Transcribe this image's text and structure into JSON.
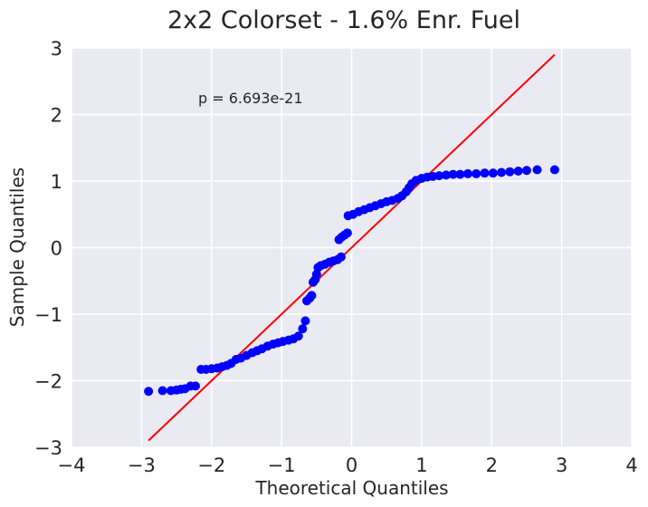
{
  "chart_data": {
    "type": "scatter",
    "title": "2x2 Colorset - 1.6% Enr. Fuel",
    "xlabel": "Theoretical Quantiles",
    "ylabel": "Sample Quantiles",
    "xlim": [
      -4,
      4
    ],
    "ylim": [
      -3,
      3
    ],
    "xticks": [
      -4,
      -3,
      -2,
      -1,
      0,
      1,
      2,
      3,
      4
    ],
    "yticks": [
      -3,
      -2,
      -1,
      0,
      1,
      2,
      3
    ],
    "xtick_labels": [
      "−4",
      "−3",
      "−2",
      "−1",
      "0",
      "1",
      "2",
      "3",
      "4"
    ],
    "ytick_labels": [
      "−3",
      "−2",
      "−1",
      "0",
      "1",
      "2",
      "3"
    ],
    "grid": true,
    "annotation": "p = 6.693e-21",
    "colors": {
      "background": "#eaeaf2",
      "grid": "#ffffff",
      "points": "#0000ff",
      "line": "#ff0000"
    },
    "reference_line": {
      "x": [
        -2.9,
        2.9
      ],
      "y": [
        -2.9,
        2.9
      ]
    },
    "points": [
      [
        -2.9,
        -2.16
      ],
      [
        -2.7,
        -2.15
      ],
      [
        -2.58,
        -2.15
      ],
      [
        -2.5,
        -2.14
      ],
      [
        -2.44,
        -2.13
      ],
      [
        -2.38,
        -2.12
      ],
      [
        -2.3,
        -2.08
      ],
      [
        -2.23,
        -2.08
      ],
      [
        -2.15,
        -1.83
      ],
      [
        -2.08,
        -1.83
      ],
      [
        -2.0,
        -1.82
      ],
      [
        -1.92,
        -1.81
      ],
      [
        -1.85,
        -1.79
      ],
      [
        -1.78,
        -1.77
      ],
      [
        -1.72,
        -1.74
      ],
      [
        -1.65,
        -1.68
      ],
      [
        -1.58,
        -1.66
      ],
      [
        -1.5,
        -1.62
      ],
      [
        -1.42,
        -1.58
      ],
      [
        -1.35,
        -1.55
      ],
      [
        -1.28,
        -1.52
      ],
      [
        -1.2,
        -1.48
      ],
      [
        -1.12,
        -1.45
      ],
      [
        -1.05,
        -1.43
      ],
      [
        -0.98,
        -1.41
      ],
      [
        -0.9,
        -1.39
      ],
      [
        -0.83,
        -1.37
      ],
      [
        -0.76,
        -1.33
      ],
      [
        -0.7,
        -1.22
      ],
      [
        -0.66,
        -1.1
      ],
      [
        -0.64,
        -0.8
      ],
      [
        -0.6,
        -0.76
      ],
      [
        -0.57,
        -0.72
      ],
      [
        -0.55,
        -0.52
      ],
      [
        -0.52,
        -0.48
      ],
      [
        -0.5,
        -0.4
      ],
      [
        -0.48,
        -0.3
      ],
      [
        -0.44,
        -0.27
      ],
      [
        -0.38,
        -0.25
      ],
      [
        -0.32,
        -0.22
      ],
      [
        -0.26,
        -0.2
      ],
      [
        -0.2,
        -0.18
      ],
      [
        -0.15,
        -0.14
      ],
      [
        -0.18,
        0.12
      ],
      [
        -0.14,
        0.16
      ],
      [
        -0.1,
        0.19
      ],
      [
        -0.06,
        0.22
      ],
      [
        -0.05,
        0.48
      ],
      [
        0.02,
        0.5
      ],
      [
        0.1,
        0.54
      ],
      [
        0.18,
        0.57
      ],
      [
        0.26,
        0.6
      ],
      [
        0.34,
        0.63
      ],
      [
        0.42,
        0.66
      ],
      [
        0.5,
        0.69
      ],
      [
        0.58,
        0.71
      ],
      [
        0.66,
        0.74
      ],
      [
        0.72,
        0.78
      ],
      [
        0.78,
        0.84
      ],
      [
        0.82,
        0.9
      ],
      [
        0.86,
        0.96
      ],
      [
        0.92,
        1.01
      ],
      [
        1.0,
        1.04
      ],
      [
        1.08,
        1.06
      ],
      [
        1.16,
        1.07
      ],
      [
        1.25,
        1.08
      ],
      [
        1.35,
        1.09
      ],
      [
        1.45,
        1.1
      ],
      [
        1.55,
        1.1
      ],
      [
        1.66,
        1.11
      ],
      [
        1.78,
        1.11
      ],
      [
        1.9,
        1.12
      ],
      [
        2.02,
        1.12
      ],
      [
        2.14,
        1.13
      ],
      [
        2.26,
        1.14
      ],
      [
        2.38,
        1.15
      ],
      [
        2.5,
        1.16
      ],
      [
        2.65,
        1.17
      ],
      [
        2.9,
        1.17
      ]
    ]
  }
}
